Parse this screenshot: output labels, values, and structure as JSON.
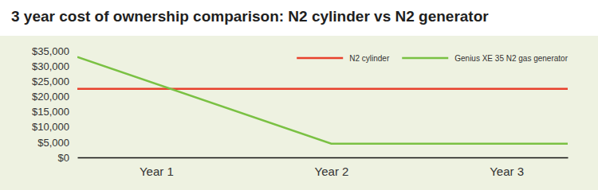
{
  "chart_data": {
    "type": "line",
    "title": "3 year cost of ownership comparison: N2 cylinder vs N2 generator",
    "x": [
      0.55,
      2,
      3.35
    ],
    "xlim": [
      0.55,
      3.35
    ],
    "xticks": [
      {
        "value": 1,
        "label": "Year 1"
      },
      {
        "value": 2,
        "label": "Year 2"
      },
      {
        "value": 3,
        "label": "Year 3"
      }
    ],
    "ylim": [
      0,
      35000
    ],
    "yticks": [
      {
        "value": 0,
        "label": "$0"
      },
      {
        "value": 5000,
        "label": "$5,000"
      },
      {
        "value": 10000,
        "label": "$10,000"
      },
      {
        "value": 15000,
        "label": "$15,000"
      },
      {
        "value": 20000,
        "label": "$20,000"
      },
      {
        "value": 25000,
        "label": "$25,000"
      },
      {
        "value": 30000,
        "label": "$30,000"
      },
      {
        "value": 35000,
        "label": "$35,000"
      }
    ],
    "series": [
      {
        "name": "N2 cylinder",
        "color": "#e8412c",
        "values": [
          22500,
          22500,
          22500
        ]
      },
      {
        "name": "Genius XE 35 N2 gas generator",
        "color": "#7ac143",
        "values": [
          33000,
          4500,
          4500
        ]
      }
    ],
    "legend": "upper right",
    "grid": false
  }
}
